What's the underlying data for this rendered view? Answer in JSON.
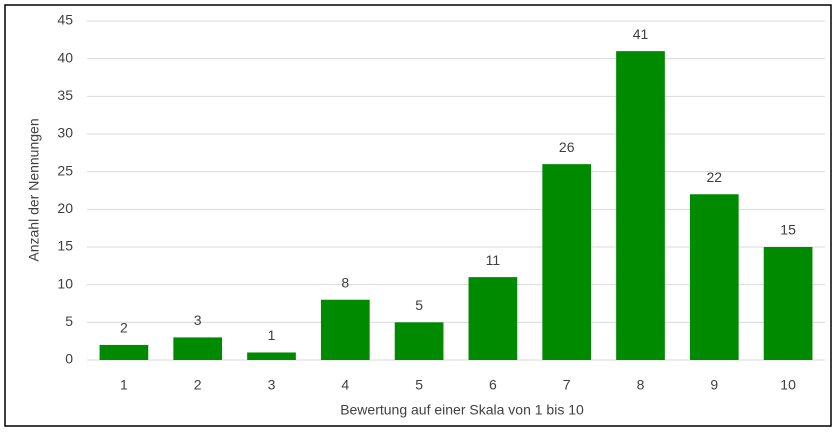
{
  "chart_data": {
    "type": "bar",
    "x_label": "Bewertung auf einer Skala von 1 bis 10",
    "y_label": "Anzahl der Nennungen",
    "categories": [
      "1",
      "2",
      "3",
      "4",
      "5",
      "6",
      "7",
      "8",
      "9",
      "10"
    ],
    "values": [
      2,
      3,
      1,
      8,
      5,
      11,
      26,
      41,
      22,
      15
    ],
    "color": "#008a00",
    "ylim": [
      0,
      45
    ],
    "yticks": [
      0,
      5,
      10,
      15,
      20,
      25,
      30,
      35,
      40,
      45
    ],
    "grid": true,
    "data_labels": true
  }
}
